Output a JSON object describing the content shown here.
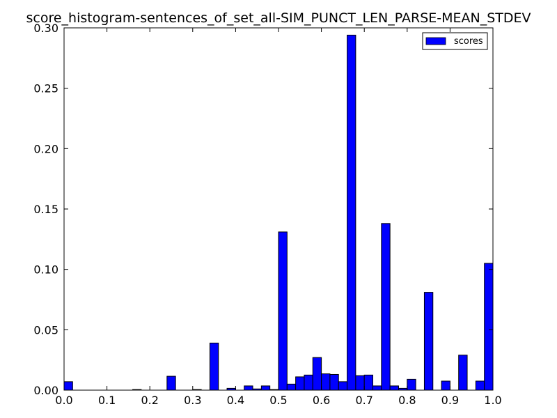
{
  "chart_data": {
    "type": "bar",
    "title": "score_histogram-sentences_of_set_all-SIM_PUNCT_LEN_PARSE-MEAN_STDEV",
    "xlabel": "",
    "ylabel": "",
    "xlim": [
      0.0,
      1.0
    ],
    "ylim": [
      0.0,
      0.3
    ],
    "bin_width": 0.02,
    "xticks": [
      "0.0",
      "0.1",
      "0.2",
      "0.3",
      "0.4",
      "0.5",
      "0.6",
      "0.7",
      "0.8",
      "0.9",
      "1.0"
    ],
    "yticks": [
      "0.00",
      "0.05",
      "0.10",
      "0.15",
      "0.20",
      "0.25",
      "0.30"
    ],
    "grid": false,
    "legend_position": "top-right",
    "bar_color": "#0000ff",
    "series": [
      {
        "name": "scores",
        "bins": [
          {
            "x": 0.0,
            "value": 0.007
          },
          {
            "x": 0.16,
            "value": 0.0005
          },
          {
            "x": 0.24,
            "value": 0.0115
          },
          {
            "x": 0.3,
            "value": 0.0005
          },
          {
            "x": 0.34,
            "value": 0.039
          },
          {
            "x": 0.38,
            "value": 0.0015
          },
          {
            "x": 0.42,
            "value": 0.0035
          },
          {
            "x": 0.44,
            "value": 0.001
          },
          {
            "x": 0.46,
            "value": 0.0035
          },
          {
            "x": 0.48,
            "value": 0.0005
          },
          {
            "x": 0.5,
            "value": 0.131
          },
          {
            "x": 0.52,
            "value": 0.005
          },
          {
            "x": 0.54,
            "value": 0.011
          },
          {
            "x": 0.56,
            "value": 0.0125
          },
          {
            "x": 0.58,
            "value": 0.027
          },
          {
            "x": 0.6,
            "value": 0.0135
          },
          {
            "x": 0.62,
            "value": 0.013
          },
          {
            "x": 0.64,
            "value": 0.007
          },
          {
            "x": 0.66,
            "value": 0.294
          },
          {
            "x": 0.68,
            "value": 0.012
          },
          {
            "x": 0.7,
            "value": 0.0125
          },
          {
            "x": 0.72,
            "value": 0.0035
          },
          {
            "x": 0.74,
            "value": 0.138
          },
          {
            "x": 0.76,
            "value": 0.0035
          },
          {
            "x": 0.78,
            "value": 0.0015
          },
          {
            "x": 0.8,
            "value": 0.009
          },
          {
            "x": 0.84,
            "value": 0.081
          },
          {
            "x": 0.88,
            "value": 0.0075
          },
          {
            "x": 0.92,
            "value": 0.029
          },
          {
            "x": 0.96,
            "value": 0.0075
          },
          {
            "x": 0.98,
            "value": 0.105
          }
        ]
      }
    ]
  }
}
